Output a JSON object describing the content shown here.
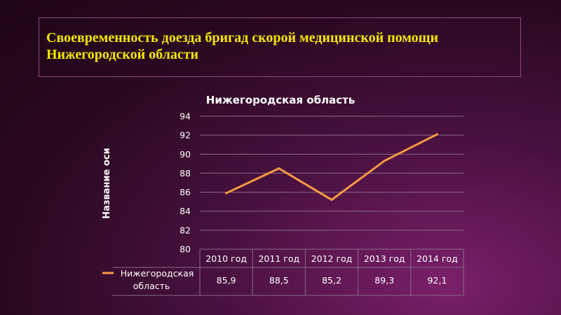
{
  "slide": {
    "title": "Своевременность доезда бригад скорой медицинской помощи Нижегородской области"
  },
  "colors": {
    "title": "#f5e600",
    "series_line": "#f59a42",
    "grid": "#8a6a84"
  },
  "chart_data": {
    "type": "line",
    "title": "Нижегородская область",
    "ylabel": "Название оси",
    "xlabel": "",
    "categories": [
      "2010 год",
      "2011 год",
      "2012 год",
      "2013 год",
      "2014 год"
    ],
    "series": [
      {
        "name": "Нижегородская область",
        "values": [
          85.9,
          88.5,
          85.2,
          89.3,
          92.1
        ],
        "value_labels": [
          "85,9",
          "88,5",
          "85,2",
          "89,3",
          "92,1"
        ]
      }
    ],
    "ylim": [
      80,
      94
    ],
    "yticks": [
      80,
      82,
      84,
      86,
      88,
      90,
      92,
      94
    ],
    "grid": true,
    "legend": "data-table-left"
  }
}
